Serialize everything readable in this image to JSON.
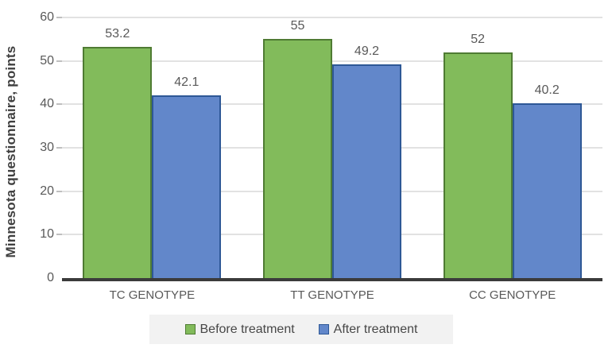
{
  "chart_data": {
    "type": "bar",
    "title": "",
    "ylabel": "Minnesota questionnaire, points",
    "xlabel": "",
    "categories": [
      "TC GENOTYPE",
      "TT GENOTYPE",
      "CC GENOTYPE"
    ],
    "series": [
      {
        "name": "Before treatment",
        "values": [
          53.2,
          55,
          52
        ]
      },
      {
        "name": "After treatment",
        "values": [
          42.1,
          49.2,
          40.2
        ]
      }
    ],
    "ylim": [
      0,
      60
    ],
    "y_ticks": [
      0,
      10,
      20,
      30,
      40,
      50,
      60
    ],
    "grid": "horizontal",
    "legend_position": "bottom",
    "colors": {
      "before_fill": "#82bb5b",
      "before_border": "#4f7b33",
      "after_fill": "#6287ca",
      "after_border": "#2e5896",
      "gridline": "#e2e2e2",
      "axis_line": "#3b3b3b",
      "tick_text": "#595959",
      "legend_bg": "#f2f2f2"
    }
  }
}
